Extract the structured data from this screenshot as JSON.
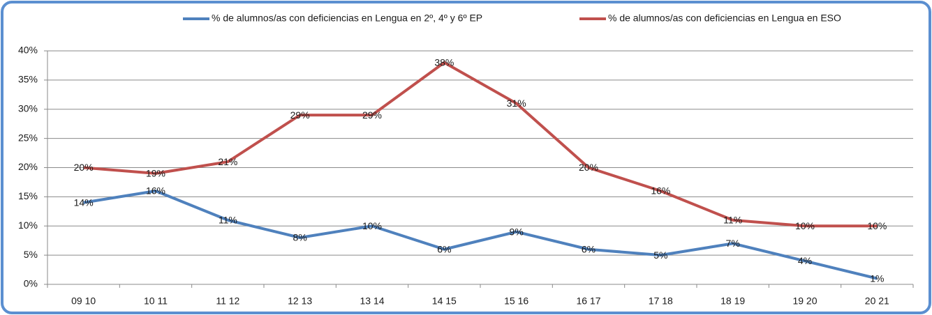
{
  "chart_data": {
    "type": "line",
    "categories": [
      "09 10",
      "10 11",
      "11 12",
      "12 13",
      "13 14",
      "14 15",
      "15 16",
      "16 17",
      "17 18",
      "18 19",
      "19 20",
      "20 21"
    ],
    "series": [
      {
        "name": "% de alumnos/as con deficiencias en Lengua  en 2º, 4º y 6º EP",
        "color": "#4f81bd",
        "values": [
          14,
          16,
          11,
          8,
          10,
          6,
          9,
          6,
          5,
          7,
          4,
          1
        ],
        "value_labels": [
          "14%",
          "16%",
          "11%",
          "8%",
          "10%",
          "6%",
          "9%",
          "6%",
          "5%",
          "7%",
          "4%",
          "1%"
        ]
      },
      {
        "name": "% de alumnos/as con deficiencias en Lengua  en  ESO",
        "color": "#c0504d",
        "values": [
          20,
          19,
          21,
          29,
          29,
          38,
          31,
          20,
          16,
          11,
          10,
          10
        ],
        "value_labels": [
          "20%",
          "19%",
          "21%",
          "29%",
          "29%",
          "38%",
          "31%",
          "20%",
          "16%",
          "11%",
          "10%",
          "10%"
        ]
      }
    ],
    "ylim": [
      0,
      40
    ],
    "yticks": [
      {
        "value": 0,
        "label": "0%"
      },
      {
        "value": 5,
        "label": "5%"
      },
      {
        "value": 10,
        "label": "10%"
      },
      {
        "value": 15,
        "label": "15%"
      },
      {
        "value": 20,
        "label": "20%"
      },
      {
        "value": 25,
        "label": "25%"
      },
      {
        "value": 30,
        "label": "30%"
      },
      {
        "value": 35,
        "label": "35%"
      },
      {
        "value": 40,
        "label": "40%"
      }
    ],
    "grid": true,
    "legend": "top"
  }
}
